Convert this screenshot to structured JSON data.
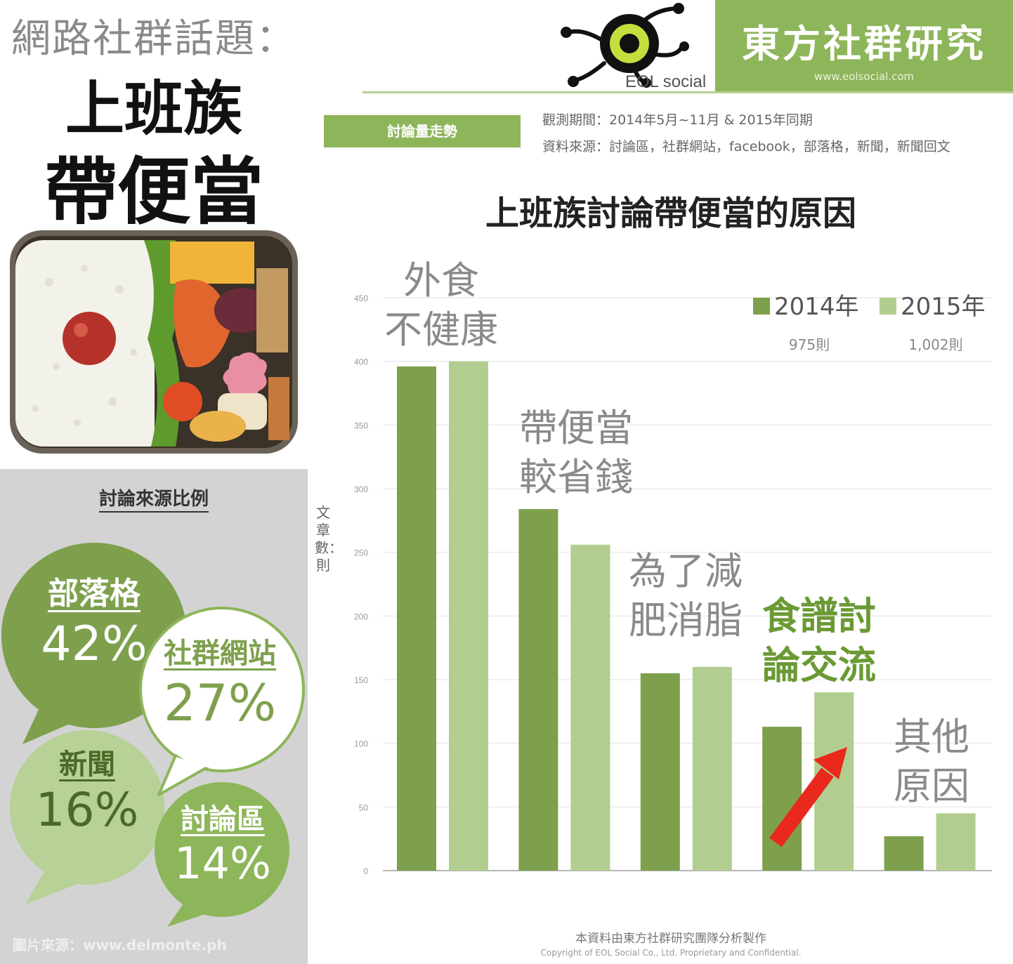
{
  "left_panel": {
    "topic": "網路社群話題：",
    "title_line1": "上班族",
    "title_line2": "帶便當",
    "sources_title": "討論來源比例",
    "sources": [
      {
        "name": "部落格",
        "percent": "42%"
      },
      {
        "name": "社群網站",
        "percent": "27%"
      },
      {
        "name": "新聞",
        "percent": "16%"
      },
      {
        "name": "討論區",
        "percent": "14%"
      }
    ],
    "image_credit": "圖片來源：www.delmonte.ph"
  },
  "header": {
    "logo_text": "EOL social",
    "brand_name": "東方社群研究",
    "brand_url": "www.eolsocial.com",
    "trend_tag": "討論量走勢",
    "period": "觀測期間：2014年5月~11月 & 2015年同期",
    "data_source": "資料來源：討論區，社群網站，facebook，部落格，新聞，新聞回文"
  },
  "footer": {
    "line1": "本資料由東方社群研究團隊分析製作",
    "line2": "Copyright of EOL Social Co., Ltd. Proprietary and Confidential."
  },
  "colors": {
    "series_2014": "#7ea04d",
    "series_2015": "#b1cd8f",
    "brand_green": "#8db55a",
    "bubble_dark": "#7ea04d",
    "bubble_light": "#b7d196",
    "arrow_red": "#e8291c"
  },
  "chart_data": {
    "type": "bar",
    "title": "上班族討論帶便當的原因",
    "ylabel": "文章數：則",
    "ylim": [
      0,
      450
    ],
    "y_ticks": [
      "0",
      "50",
      "100",
      "150",
      "200",
      "250",
      "300",
      "350",
      "400",
      "450"
    ],
    "grid": true,
    "legend_position": "top-right",
    "categories": [
      [
        "外食",
        "不健康"
      ],
      [
        "帶便當",
        "較省錢"
      ],
      [
        "為了減",
        "肥消脂"
      ],
      [
        "食譜討",
        "論交流"
      ],
      [
        "其他",
        "原因"
      ]
    ],
    "series": [
      {
        "name": "2014年",
        "total": "975則",
        "values": [
          396,
          284,
          155,
          113,
          27
        ]
      },
      {
        "name": "2015年",
        "total": "1,002則",
        "values": [
          400,
          256,
          160,
          140,
          45
        ]
      }
    ],
    "highlight_category_index": 3
  }
}
